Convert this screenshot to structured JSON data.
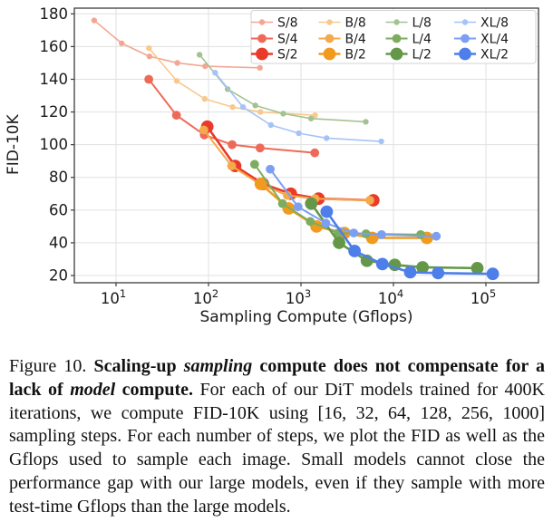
{
  "figure": {
    "caption": {
      "label": "Figure 10.",
      "bold_runs": [
        {
          "text": "Scaling-up ",
          "italic": false
        },
        {
          "text": "sampling",
          "italic": true
        },
        {
          "text": " compute does not compensate for a lack of ",
          "italic": false
        },
        {
          "text": "model",
          "italic": true
        },
        {
          "text": " compute.",
          "italic": false
        }
      ],
      "body": " For each of our DiT models trained for 400K iterations, we compute FID-10K using [16, 32, 64, 128, 256, 1000] sampling steps. For each number of steps, we plot the FID as well as the Gflops used to sample each image. Small models cannot close the performance gap with our large models, even if they sample with more test-time Gflops than the large models."
    }
  },
  "chart_data": {
    "type": "line",
    "title": "",
    "xlabel": "Sampling Compute (Gflops)",
    "ylabel": "FID-10K",
    "x_scale": "log",
    "x_tick_exponents": [
      1,
      2,
      3,
      4,
      5
    ],
    "y_ticks": [
      20,
      40,
      60,
      80,
      100,
      120,
      140,
      160,
      180
    ],
    "ylim": [
      15.6,
      183.5
    ],
    "xlim_log10": [
      0.55,
      5.63
    ],
    "grid": true,
    "legend_position": "upper right",
    "sampling_steps": [
      16,
      32,
      64,
      128,
      256,
      1000
    ],
    "series": [
      {
        "name": "S/8",
        "color": "#f3a696",
        "size": "small",
        "x": [
          5.8,
          11.5,
          23,
          46,
          92,
          360
        ],
        "y": [
          176,
          162,
          154,
          150,
          148,
          147
        ]
      },
      {
        "name": "S/4",
        "color": "#ee6a58",
        "size": "medium",
        "x": [
          22.6,
          45,
          90,
          180,
          361,
          1410
        ],
        "y": [
          140,
          118,
          106,
          100,
          98,
          95
        ]
      },
      {
        "name": "S/2",
        "color": "#e93a2a",
        "size": "large",
        "x": [
          97,
          194,
          388,
          776,
          1551,
          6060
        ],
        "y": [
          111,
          87,
          76,
          70,
          67,
          66
        ]
      },
      {
        "name": "B/8",
        "color": "#f8c98c",
        "size": "small",
        "x": [
          22.7,
          45.4,
          91,
          182,
          364,
          1420
        ],
        "y": [
          159,
          139,
          128,
          123,
          120,
          118
        ]
      },
      {
        "name": "B/4",
        "color": "#f4a94c",
        "size": "medium",
        "x": [
          89,
          178,
          356,
          712,
          1423,
          5560
        ],
        "y": [
          109,
          87,
          76,
          69,
          67,
          66
        ]
      },
      {
        "name": "B/2",
        "color": "#f19b1e",
        "size": "large",
        "x": [
          368,
          736,
          1473,
          2945,
          5891,
          23010
        ],
        "y": [
          76,
          61,
          50,
          46,
          43,
          43
        ]
      },
      {
        "name": "L/8",
        "color": "#a4c291",
        "size": "small",
        "x": [
          80,
          161,
          321,
          643,
          1285,
          5020
        ],
        "y": [
          155,
          134,
          124,
          119,
          116,
          114
        ]
      },
      {
        "name": "L/4",
        "color": "#7dac60",
        "size": "medium",
        "x": [
          315,
          630,
          1261,
          2522,
          5043,
          19700
        ],
        "y": [
          88,
          64,
          53,
          46,
          45.5,
          45
        ]
      },
      {
        "name": "L/2",
        "color": "#649848",
        "size": "large",
        "x": [
          1291,
          2583,
          5165,
          10331,
          20662,
          80710
        ],
        "y": [
          64,
          40,
          29,
          26.5,
          25,
          24.5
        ]
      },
      {
        "name": "XL/8",
        "color": "#a5c3f6",
        "size": "small",
        "x": [
          118,
          236,
          473,
          946,
          1892,
          7390
        ],
        "y": [
          144,
          123,
          112,
          107,
          104,
          102
        ]
      },
      {
        "name": "XL/4",
        "color": "#7d9ff1",
        "size": "medium",
        "x": [
          465,
          930,
          1859,
          3718,
          7437,
          29050
        ],
        "y": [
          85,
          62,
          52,
          46,
          45,
          44
        ]
      },
      {
        "name": "XL/2",
        "color": "#4d7ee9",
        "size": "large",
        "x": [
          1898,
          3796,
          7593,
          15186,
          30372,
          118640
        ],
        "y": [
          59,
          35,
          27,
          22,
          21.5,
          21
        ]
      }
    ],
    "style": {
      "grid_color": "#e0e0e0",
      "frame_color": "#3c3c3c",
      "legend_border_color": "#d3d3d3",
      "legend_background": "#ffffff"
    }
  }
}
